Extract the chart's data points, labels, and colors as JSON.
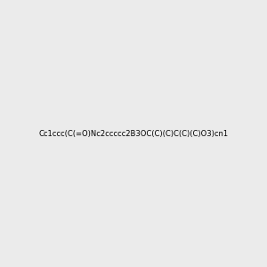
{
  "smiles": "Cc1ccc(C(=O)Nc2ccccc2B3OC(C)(C)C(C)(C)O3)cn1",
  "title": "",
  "bg_color": "#ebebeb",
  "img_size": [
    300,
    300
  ],
  "atom_colors": {
    "N": [
      0,
      0,
      1
    ],
    "O": [
      1,
      0,
      0
    ],
    "B": [
      0,
      0.6,
      0
    ]
  }
}
